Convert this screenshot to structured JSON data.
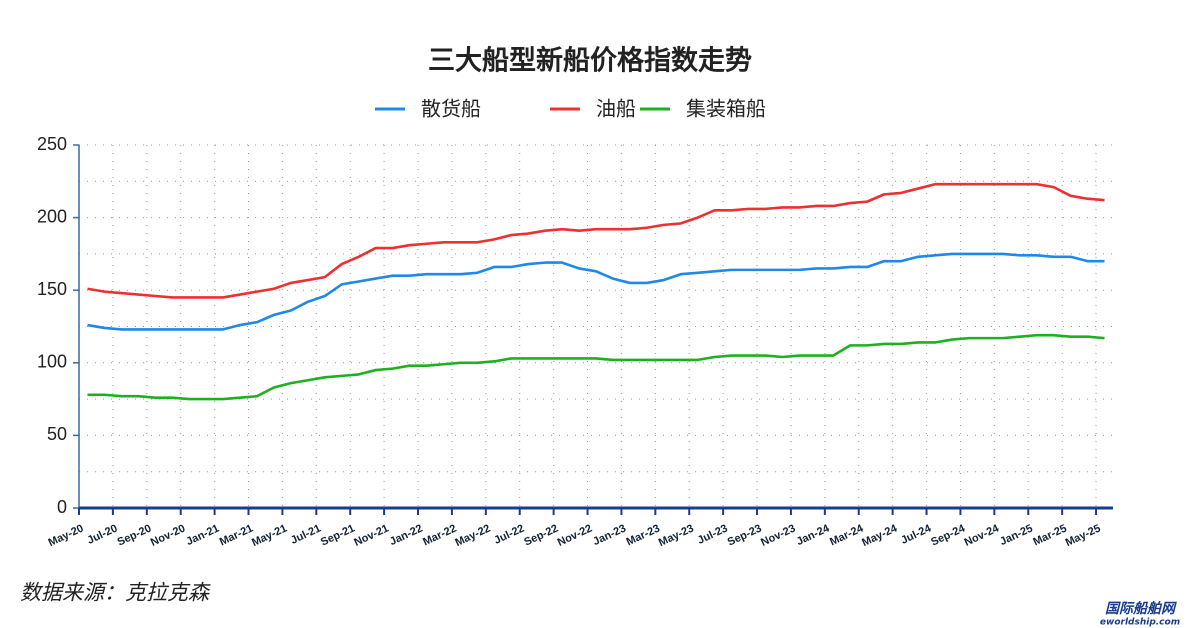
{
  "chart_data": {
    "type": "line",
    "title": "三大船型新船价格指数走势",
    "categories": [
      "May-20",
      null,
      "Jul-20",
      null,
      "Sep-20",
      null,
      "Nov-20",
      null,
      "Jan-21",
      null,
      "Mar-21",
      null,
      "May-21",
      null,
      "Jul-21",
      null,
      "Sep-21",
      null,
      "Nov-21",
      null,
      "Jan-22",
      null,
      "Mar-22",
      null,
      "May-22",
      null,
      "Jul-22",
      null,
      "Sep-22",
      null,
      "Nov-22",
      null,
      "Jan-23",
      null,
      "Mar-23",
      null,
      "May-23",
      null,
      "Jul-23",
      null,
      "Sep-23",
      null,
      "Nov-23",
      null,
      "Jan-24",
      null,
      "Mar-24",
      null,
      "May-24",
      null,
      "Jul-24",
      null,
      "Sep-24",
      null,
      "Nov-24",
      null,
      "Jan-25",
      null,
      "Mar-25",
      null,
      "May-25"
    ],
    "series": [
      {
        "name": "散货船",
        "color": "#1f88e8",
        "values": [
          126,
          124,
          123,
          123,
          123,
          123,
          123,
          123,
          123,
          126,
          128,
          133,
          136,
          142,
          146,
          154,
          156,
          158,
          160,
          160,
          161,
          161,
          161,
          162,
          166,
          166,
          168,
          169,
          169,
          165,
          163,
          158,
          155,
          155,
          157,
          161,
          162,
          163,
          164,
          164,
          164,
          164,
          164,
          165,
          165,
          166,
          166,
          170,
          170,
          173,
          174,
          175,
          175,
          175,
          175,
          174,
          174,
          173,
          173,
          170,
          170
        ]
      },
      {
        "name": "油船",
        "color": "#ee3030",
        "values": [
          151,
          149,
          148,
          147,
          146,
          145,
          145,
          145,
          145,
          147,
          149,
          151,
          155,
          157,
          159,
          168,
          173,
          179,
          179,
          181,
          182,
          183,
          183,
          183,
          185,
          188,
          189,
          191,
          192,
          191,
          192,
          192,
          192,
          193,
          195,
          196,
          200,
          205,
          205,
          206,
          206,
          207,
          207,
          208,
          208,
          210,
          211,
          216,
          217,
          220,
          223,
          223,
          223,
          223,
          223,
          223,
          223,
          221,
          215,
          213,
          212
        ]
      },
      {
        "name": "集装箱船",
        "color": "#1eb01e",
        "values": [
          78,
          78,
          77,
          77,
          76,
          76,
          75,
          75,
          75,
          76,
          77,
          83,
          86,
          88,
          90,
          91,
          92,
          95,
          96,
          98,
          98,
          99,
          100,
          100,
          101,
          103,
          103,
          103,
          103,
          103,
          103,
          102,
          102,
          102,
          102,
          102,
          102,
          104,
          105,
          105,
          105,
          104,
          105,
          105,
          105,
          112,
          112,
          113,
          113,
          114,
          114,
          116,
          117,
          117,
          117,
          118,
          119,
          119,
          118,
          118,
          117
        ]
      }
    ],
    "ylim": [
      0,
      250
    ],
    "yticks": [
      0,
      50,
      100,
      150,
      200,
      250
    ],
    "grid": true,
    "source": "数据来源：克拉克森",
    "watermark": "国际船舶网",
    "watermark_url": "eworldship.com"
  }
}
